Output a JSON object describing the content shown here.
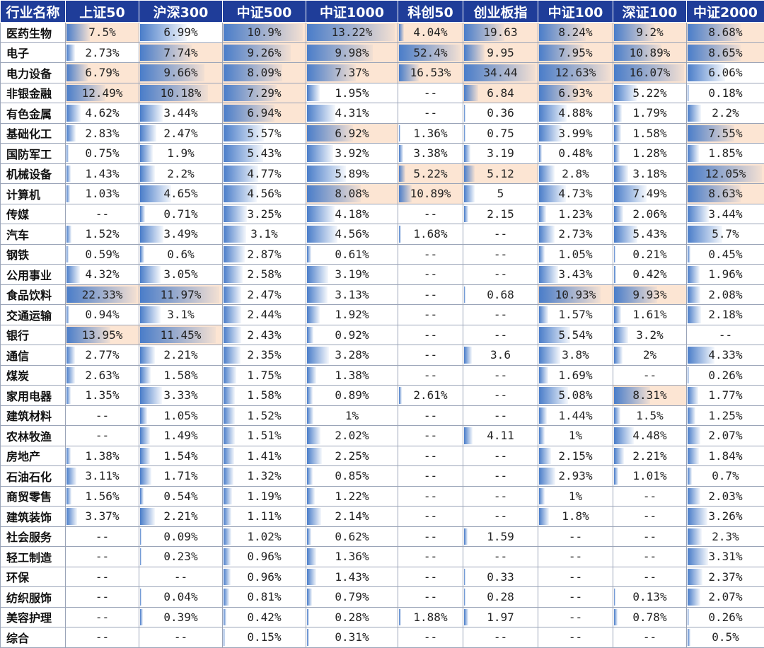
{
  "table": {
    "columns": [
      "行业名称",
      "上证50",
      "沪深300",
      "中证500",
      "中证1000",
      "科创50",
      "创业板指",
      "中证100",
      "深证100",
      "中证2000"
    ],
    "rows": [
      {
        "name": "医药生物",
        "values": [
          "7.5%",
          "6.99%",
          "10.9%",
          "13.22%",
          "4.04%",
          "19.63",
          "8.24%",
          "9.2%",
          "8.68%"
        ]
      },
      {
        "name": "电子",
        "values": [
          "2.73%",
          "7.74%",
          "9.26%",
          "9.98%",
          "52.4%",
          "9.95",
          "7.95%",
          "10.89%",
          "8.65%"
        ]
      },
      {
        "name": "电力设备",
        "values": [
          "6.79%",
          "9.66%",
          "8.09%",
          "7.37%",
          "16.53%",
          "34.44",
          "12.63%",
          "16.07%",
          "6.06%"
        ]
      },
      {
        "name": "非银金融",
        "values": [
          "12.49%",
          "10.18%",
          "7.29%",
          "1.95%",
          "--",
          "6.84",
          "6.93%",
          "5.22%",
          "0.18%"
        ]
      },
      {
        "name": "有色金属",
        "values": [
          "4.62%",
          "3.44%",
          "6.94%",
          "4.31%",
          "--",
          "0.36",
          "4.88%",
          "1.79%",
          "2.2%"
        ]
      },
      {
        "name": "基础化工",
        "values": [
          "2.83%",
          "2.47%",
          "5.57%",
          "6.92%",
          "1.36%",
          "0.75",
          "3.99%",
          "1.58%",
          "7.55%"
        ]
      },
      {
        "name": "国防军工",
        "values": [
          "0.75%",
          "1.9%",
          "5.43%",
          "3.92%",
          "3.38%",
          "3.19",
          "0.48%",
          "1.28%",
          "1.85%"
        ]
      },
      {
        "name": "机械设备",
        "values": [
          "1.43%",
          "2.2%",
          "4.77%",
          "5.89%",
          "5.22%",
          "5.12",
          "2.8%",
          "3.18%",
          "12.05%"
        ]
      },
      {
        "name": "计算机",
        "values": [
          "1.03%",
          "4.65%",
          "4.56%",
          "8.08%",
          "10.89%",
          "5",
          "4.73%",
          "7.49%",
          "8.63%"
        ]
      },
      {
        "name": "传媒",
        "values": [
          "--",
          "0.71%",
          "3.25%",
          "4.18%",
          "--",
          "2.15",
          "1.23%",
          "2.06%",
          "3.44%"
        ]
      },
      {
        "name": "汽车",
        "values": [
          "1.52%",
          "3.49%",
          "3.1%",
          "4.56%",
          "1.68%",
          "--",
          "2.73%",
          "5.43%",
          "5.7%"
        ]
      },
      {
        "name": "钢铁",
        "values": [
          "0.59%",
          "0.6%",
          "2.87%",
          "0.61%",
          "--",
          "--",
          "1.05%",
          "0.21%",
          "0.45%"
        ]
      },
      {
        "name": "公用事业",
        "values": [
          "4.32%",
          "3.05%",
          "2.58%",
          "3.19%",
          "--",
          "--",
          "3.43%",
          "0.42%",
          "1.96%"
        ]
      },
      {
        "name": "食品饮料",
        "values": [
          "22.33%",
          "11.97%",
          "2.47%",
          "3.13%",
          "--",
          "0.68",
          "10.93%",
          "9.93%",
          "2.08%"
        ]
      },
      {
        "name": "交通运输",
        "values": [
          "0.94%",
          "3.1%",
          "2.44%",
          "1.92%",
          "--",
          "--",
          "1.57%",
          "1.61%",
          "2.18%"
        ]
      },
      {
        "name": "银行",
        "values": [
          "13.95%",
          "11.45%",
          "2.43%",
          "0.92%",
          "--",
          "--",
          "5.54%",
          "3.2%",
          "--"
        ]
      },
      {
        "name": "通信",
        "values": [
          "2.77%",
          "2.21%",
          "2.35%",
          "3.28%",
          "--",
          "3.6",
          "3.8%",
          "2%",
          "4.33%"
        ]
      },
      {
        "name": "煤炭",
        "values": [
          "2.63%",
          "1.58%",
          "1.75%",
          "1.38%",
          "--",
          "--",
          "1.69%",
          "--",
          "0.26%"
        ]
      },
      {
        "name": "家用电器",
        "values": [
          "1.35%",
          "3.33%",
          "1.58%",
          "0.89%",
          "2.61%",
          "--",
          "5.08%",
          "8.31%",
          "1.77%"
        ]
      },
      {
        "name": "建筑材料",
        "values": [
          "--",
          "1.05%",
          "1.52%",
          "1%",
          "--",
          "--",
          "1.44%",
          "1.5%",
          "1.25%"
        ]
      },
      {
        "name": "农林牧渔",
        "values": [
          "--",
          "1.49%",
          "1.51%",
          "2.02%",
          "--",
          "4.11",
          "1%",
          "4.48%",
          "2.07%"
        ]
      },
      {
        "name": "房地产",
        "values": [
          "1.38%",
          "1.54%",
          "1.41%",
          "2.25%",
          "--",
          "--",
          "2.15%",
          "2.21%",
          "1.84%"
        ]
      },
      {
        "name": "石油石化",
        "values": [
          "3.11%",
          "1.71%",
          "1.32%",
          "0.85%",
          "--",
          "--",
          "2.93%",
          "1.01%",
          "0.7%"
        ]
      },
      {
        "name": "商贸零售",
        "values": [
          "1.56%",
          "0.54%",
          "1.19%",
          "1.22%",
          "--",
          "--",
          "1%",
          "--",
          "2.03%"
        ]
      },
      {
        "name": "建筑装饰",
        "values": [
          "3.37%",
          "2.21%",
          "1.11%",
          "2.14%",
          "--",
          "--",
          "1.8%",
          "--",
          "3.26%"
        ]
      },
      {
        "name": "社会服务",
        "values": [
          "--",
          "0.09%",
          "1.02%",
          "0.62%",
          "--",
          "1.59",
          "--",
          "--",
          "2.3%"
        ]
      },
      {
        "name": "轻工制造",
        "values": [
          "--",
          "0.23%",
          "0.96%",
          "1.36%",
          "--",
          "--",
          "--",
          "--",
          "3.31%"
        ]
      },
      {
        "name": "环保",
        "values": [
          "--",
          "--",
          "0.96%",
          "1.43%",
          "--",
          "0.33",
          "--",
          "--",
          "2.37%"
        ]
      },
      {
        "name": "纺织服饰",
        "values": [
          "--",
          "0.04%",
          "0.81%",
          "0.79%",
          "--",
          "0.28",
          "--",
          "0.13%",
          "2.07%"
        ]
      },
      {
        "name": "美容护理",
        "values": [
          "--",
          "0.39%",
          "0.42%",
          "0.28%",
          "1.88%",
          "1.97",
          "--",
          "0.78%",
          "0.26%"
        ]
      },
      {
        "name": "综合",
        "values": [
          "--",
          "--",
          "0.15%",
          "0.31%",
          "--",
          "--",
          "--",
          "--",
          "0.5%"
        ]
      }
    ],
    "highlight_top_n": 5,
    "colors": {
      "header_bg": "#1f3d99",
      "highlight_bg": "#fce5d3",
      "bar": "#4a7dc9"
    }
  }
}
